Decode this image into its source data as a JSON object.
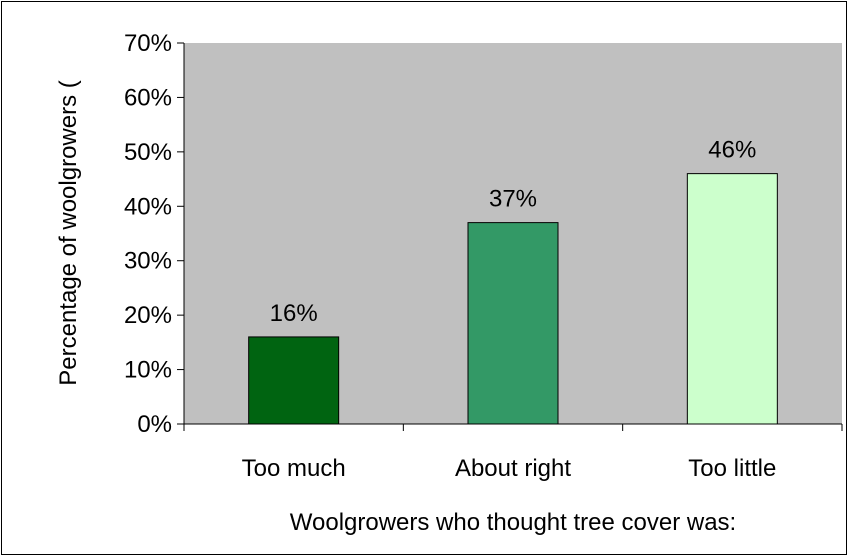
{
  "chart_data": {
    "type": "bar",
    "title": "",
    "categories": [
      "Too much",
      "About right",
      "Too little"
    ],
    "values": [
      16,
      37,
      46
    ],
    "data_labels": [
      "16%",
      "37%",
      "46%"
    ],
    "bar_colors": [
      "#006411",
      "#339966",
      "#ccffcc"
    ],
    "plot_background": "#c0c0c0",
    "ylim": [
      0,
      70
    ],
    "yticks": [
      0,
      10,
      20,
      30,
      40,
      50,
      60,
      70
    ],
    "ytick_labels": [
      "0%",
      "10%",
      "20%",
      "30%",
      "40%",
      "50%",
      "60%",
      "70%"
    ],
    "xlabel": "Woolgrowers who thought tree cover was:",
    "ylabel": "Percentage of woolgrowers (",
    "grid": false,
    "legend": "none"
  }
}
